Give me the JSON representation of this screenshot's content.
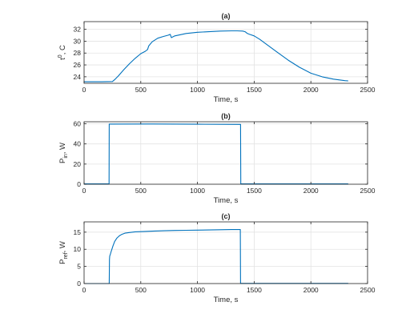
{
  "colors": {
    "series": "#0072bd",
    "axis": "#262626",
    "grid": "#e3e3e3"
  },
  "chart_data": [
    {
      "type": "line",
      "title": "(a)",
      "xlabel": "Time, s",
      "ylabel": {
        "base": "t",
        "sup": "0",
        "rest": ", C"
      },
      "xlim": [
        0,
        2500
      ],
      "ylim": [
        22.9,
        33.3
      ],
      "xticks": [
        0,
        500,
        1000,
        1500,
        2000,
        2500
      ],
      "yticks": [
        24,
        26,
        28,
        30,
        32
      ],
      "grid": true,
      "series": [
        {
          "x": [
            0,
            150,
            250,
            275,
            300,
            350,
            400,
            450,
            500,
            540,
            560,
            570,
            600,
            650,
            700,
            740,
            760,
            770,
            780,
            800,
            850,
            900,
            1000,
            1100,
            1200,
            1300,
            1350,
            1400,
            1420,
            1440,
            1460,
            1500,
            1550,
            1600,
            1700,
            1800,
            1900,
            2000,
            2100,
            2200,
            2300,
            2330
          ],
          "y": [
            23.15,
            23.15,
            23.2,
            23.6,
            24.1,
            25.2,
            26.2,
            27.1,
            27.9,
            28.3,
            28.6,
            29.2,
            29.9,
            30.5,
            30.8,
            31.0,
            31.15,
            30.6,
            30.7,
            30.9,
            31.1,
            31.3,
            31.5,
            31.6,
            31.7,
            31.75,
            31.75,
            31.7,
            31.6,
            31.3,
            31.15,
            30.9,
            30.3,
            29.6,
            28.2,
            26.8,
            25.6,
            24.6,
            24.0,
            23.6,
            23.35,
            23.3
          ]
        }
      ]
    },
    {
      "type": "line",
      "title": "(b)",
      "xlabel": "Time, s",
      "ylabel": {
        "base": "P",
        "sub": "in",
        "rest": ", W"
      },
      "xlim": [
        0,
        2500
      ],
      "ylim": [
        0,
        62
      ],
      "xticks": [
        0,
        500,
        1000,
        1500,
        2000,
        2500
      ],
      "yticks": [
        0,
        20,
        40,
        60
      ],
      "grid": true,
      "series": [
        {
          "x": [
            0,
            220,
            222,
            600,
            1000,
            1380,
            1382,
            2330
          ],
          "y": [
            0.3,
            0.3,
            59.7,
            59.8,
            59.5,
            59.4,
            0.3,
            0.3
          ]
        }
      ]
    },
    {
      "type": "line",
      "title": "(c)",
      "xlabel": "Time, s",
      "ylabel": {
        "base": "P",
        "sub": "ref",
        "rest": ", W"
      },
      "xlim": [
        0,
        2500
      ],
      "ylim": [
        0,
        18
      ],
      "xticks": [
        0,
        500,
        1000,
        1500,
        2000,
        2500
      ],
      "yticks": [
        0,
        5,
        10,
        15
      ],
      "grid": true,
      "series": [
        {
          "x": [
            0,
            222,
            224,
            226,
            230,
            240,
            255,
            270,
            290,
            310,
            330,
            360,
            400,
            450,
            500,
            600,
            700,
            800,
            900,
            1000,
            1100,
            1200,
            1300,
            1378,
            1380,
            2330
          ],
          "y": [
            0,
            0,
            7.0,
            8.0,
            8.4,
            9.5,
            11.0,
            12.3,
            13.3,
            13.9,
            14.3,
            14.7,
            14.9,
            15.1,
            15.15,
            15.3,
            15.4,
            15.5,
            15.55,
            15.6,
            15.65,
            15.7,
            15.75,
            15.75,
            0.05,
            0.05
          ]
        }
      ]
    }
  ]
}
